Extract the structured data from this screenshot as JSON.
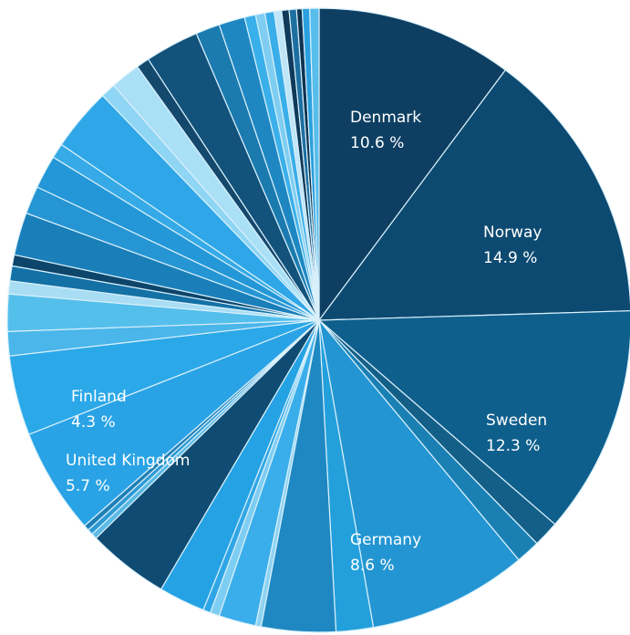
{
  "chart_data": {
    "type": "pie",
    "title": "",
    "start": "12 o'clock",
    "direction": "clockwise",
    "slices": [
      {
        "label": "Denmark",
        "value": 10.6,
        "value_label": "10.6 %",
        "color": "#0e3f62"
      },
      {
        "label": "Norway",
        "value": 14.9,
        "value_label": "14.9 %",
        "color": "#0d4a71"
      },
      {
        "label": "Sweden",
        "value": 12.3,
        "value_label": "12.3 %",
        "color": "#0f5f8c"
      },
      {
        "value": 1.4,
        "color": "#145f88"
      },
      {
        "value": 1.3,
        "color": "#1a80b4"
      },
      {
        "label": "Germany",
        "value": 8.6,
        "value_label": "8.6 %",
        "color": "#2395d2"
      },
      {
        "value": 2.0,
        "color": "#23a0dc"
      },
      {
        "value": 4.0,
        "color": "#1f88c2"
      },
      {
        "value": 0.3,
        "color": "#8fd3f3"
      },
      {
        "value": 2.0,
        "color": "#3aaeea"
      },
      {
        "value": 0.5,
        "color": "#7ecdf2"
      },
      {
        "value": 0.4,
        "color": "#2fa6e6"
      },
      {
        "value": 2.5,
        "color": "#24a2e4"
      },
      {
        "value": 4.4,
        "color": "#0f4b72"
      },
      {
        "value": 0.3,
        "color": "#5bb9e6"
      },
      {
        "value": 0.3,
        "color": "#2e9ad4"
      },
      {
        "value": 0.3,
        "color": "#1e7fb5"
      },
      {
        "label": "United Kingdom",
        "value": 5.7,
        "value_label": "5.7 %",
        "color": "#29a3e5"
      },
      {
        "label": "Finland",
        "value": 4.3,
        "value_label": "4.3 %",
        "color": "#2ba8e8"
      },
      {
        "value": 1.3,
        "color": "#4ab6ea"
      },
      {
        "value": 2.0,
        "color": "#55bfec"
      },
      {
        "value": 0.7,
        "color": "#a8ddf4"
      },
      {
        "value": 0.8,
        "color": "#1371a6"
      },
      {
        "value": 0.6,
        "color": "#0d456b"
      },
      {
        "value": 2.3,
        "color": "#1a7fb9"
      },
      {
        "value": 1.5,
        "color": "#2595d4"
      },
      {
        "value": 1.8,
        "color": "#2397d7"
      },
      {
        "value": 0.8,
        "color": "#36aae6"
      },
      {
        "value": 3.4,
        "color": "#2ea6e7"
      },
      {
        "value": 0.8,
        "color": "#8fd5f4"
      },
      {
        "value": 1.6,
        "color": "#a9e0f6"
      },
      {
        "value": 0.7,
        "color": "#14486c"
      },
      {
        "value": 2.9,
        "color": "#12527b"
      },
      {
        "value": 1.3,
        "color": "#1b7aae"
      },
      {
        "value": 1.4,
        "color": "#1e87c2"
      },
      {
        "value": 0.6,
        "color": "#3ab0ea"
      },
      {
        "value": 0.5,
        "color": "#7fcdf1"
      },
      {
        "value": 0.5,
        "color": "#3aaee8"
      },
      {
        "value": 0.4,
        "color": "#bfe6f7"
      },
      {
        "value": 0.4,
        "color": "#0f3a5a"
      },
      {
        "value": 0.4,
        "color": "#1d6fa0"
      },
      {
        "value": 0.3,
        "color": "#0e3452"
      },
      {
        "value": 0.4,
        "color": "#2aa0de"
      },
      {
        "value": 0.5,
        "color": "#57bdeb"
      }
    ]
  }
}
